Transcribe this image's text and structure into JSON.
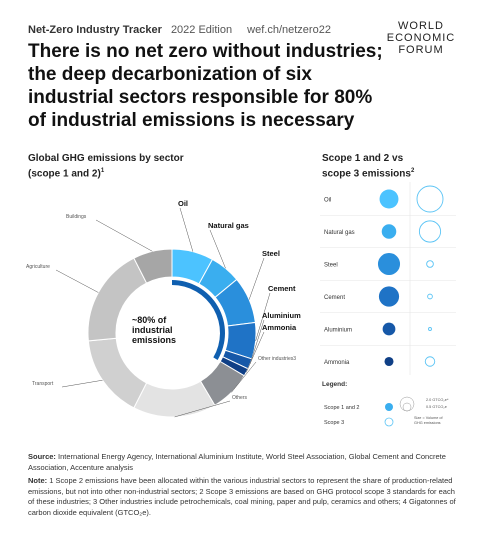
{
  "header": {
    "brand": "Net-Zero Industry Tracker",
    "edition": "2022 Edition",
    "url": "wef.ch/netzero22"
  },
  "logo": {
    "line1": "WORLD",
    "line2": "ECONOMIC",
    "line3": "FORUM"
  },
  "title": "There is no net zero without industries; the deep decarbonization of six industrial sectors responsible for 80% of industrial emissions is necessary",
  "left_heading": {
    "line1": "Global GHG emissions by sector",
    "line2": "(scope 1 and 2)",
    "sup": "1"
  },
  "right_heading": {
    "line1": "Scope 1 and 2 vs",
    "line2": "scope 3 emissions",
    "sup": "2"
  },
  "center_label": {
    "line1": "~80% of",
    "line2": "industrial",
    "line3": "emissions"
  },
  "colors": {
    "oil": "#4cc3ff",
    "natural_gas": "#3aaeef",
    "steel": "#2a8fdc",
    "cement": "#1f73c6",
    "aluminium": "#1658a8",
    "ammonia": "#0f3f86",
    "other_industries": "#8c8f94",
    "others": "#d9d9d9",
    "transport": "#cccccc",
    "agriculture": "#bfbfbf",
    "buildings": "#a3a3a3",
    "scope3_stroke": "#5bc4f5"
  },
  "chart_data": [
    {
      "type": "pie",
      "title": "Global GHG emissions by sector (scope 1 and 2)",
      "slices": [
        {
          "label": "Oil",
          "value": 8,
          "color": "#4cc3ff"
        },
        {
          "label": "Natural gas",
          "value": 6,
          "color": "#3aaeef"
        },
        {
          "label": "Steel",
          "value": 9,
          "color": "#2a8fdc"
        },
        {
          "label": "Cement",
          "value": 7,
          "color": "#1f73c6"
        },
        {
          "label": "Aluminium",
          "value": 2,
          "color": "#1658a8"
        },
        {
          "label": "Ammonia",
          "value": 1.5,
          "color": "#0f3f86"
        },
        {
          "label": "Other industries",
          "label_sup": "3",
          "value": 8,
          "color": "#8c8f94"
        },
        {
          "label": "Others",
          "value": 16,
          "color": "#e3e3e3"
        },
        {
          "label": "Transport",
          "value": 16,
          "color": "#d0d0d0"
        },
        {
          "label": "Agriculture",
          "value": 19,
          "color": "#c4c4c4"
        },
        {
          "label": "Buildings",
          "value": 7.5,
          "color": "#a6a6a6"
        }
      ],
      "annotation": "~80% of industrial emissions"
    },
    {
      "type": "scatter",
      "title": "Scope 1 and 2 vs scope 3 emissions",
      "categories": [
        "Oil",
        "Natural gas",
        "Steel",
        "Cement",
        "Aluminium",
        "Ammonia"
      ],
      "series": [
        {
          "name": "Scope 1 and 2",
          "values": [
            2.2,
            1.3,
            3.0,
            2.5,
            1.0,
            0.5
          ]
        },
        {
          "name": "Scope 3",
          "values": [
            15.0,
            10.0,
            1.0,
            0.5,
            0.2,
            2.0
          ]
        }
      ],
      "unit": "GTCO2e"
    }
  ],
  "legend": {
    "title": "Legend:",
    "scope12": "Scope 1 and 2",
    "scope3": "Scope 3",
    "big_value": "2.0 GTCO₂e⁴",
    "small_value": "0.5 GTCO₂e",
    "note1": "Size = Volume of",
    "note2": "GHG emissions"
  },
  "footer": {
    "source_label": "Source:",
    "source_text": "International Energy Agency, International Aluminium Institute, World Steel Association, Global Cement and Concrete Association, Accenture analysis",
    "note_label": "Note:",
    "note_text": "1 Scope 2 emissions have been allocated within the various industrial sectors to represent the share of production-related emissions, but not into other non-industrial sectors; 2 Scope 3 emissions are based on GHG protocol scope 3 standards for each of these industries; 3 Other industries include petrochemicals, coal mining, paper and pulp, ceramics and others; 4 Gigatonnes of carbon dioxide equivalent (GTCO₂e)."
  }
}
